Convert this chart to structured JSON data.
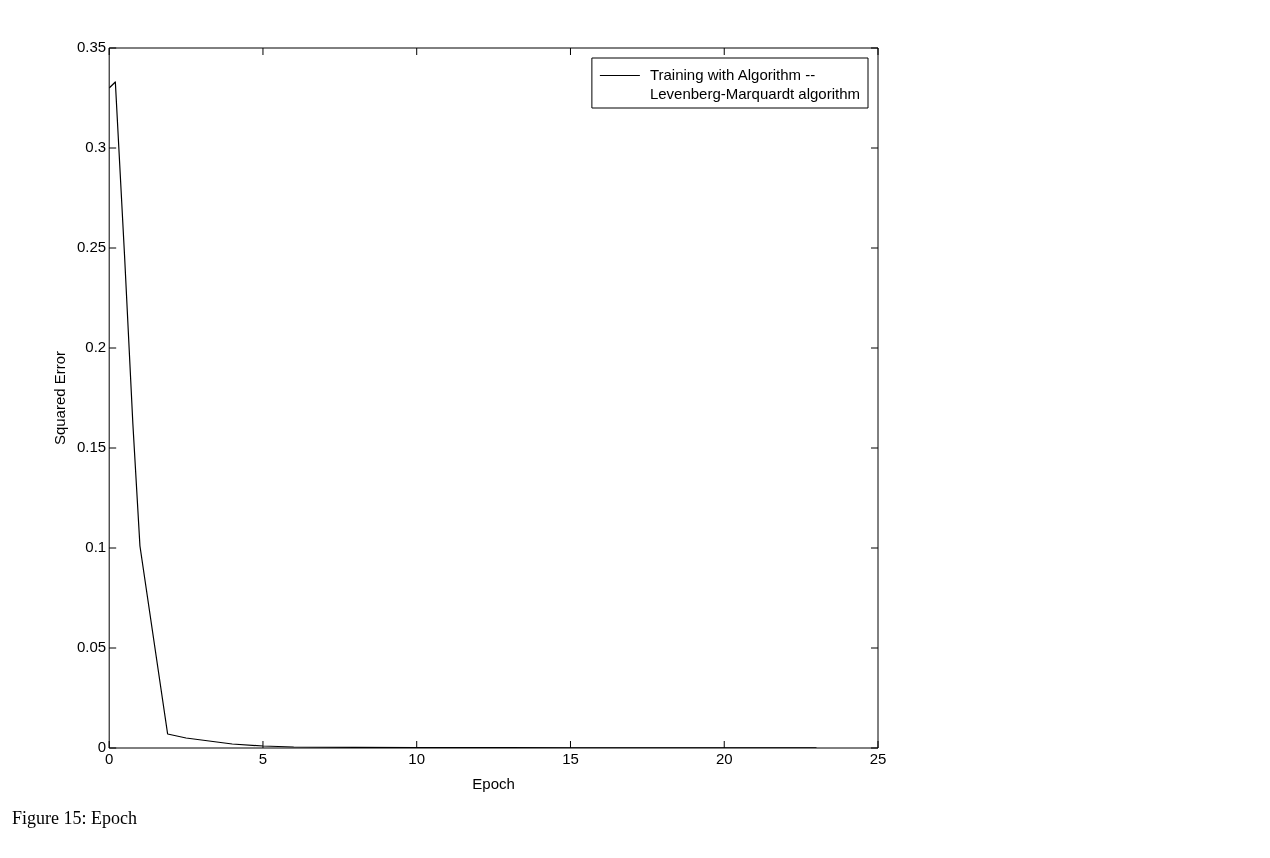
{
  "chart_data": {
    "type": "line",
    "xlabel": "Epoch",
    "ylabel": "Squared Error",
    "x": [
      0,
      0.2,
      0.5,
      0.77,
      1,
      1.9,
      2.5,
      3.5,
      4,
      5,
      6,
      8,
      10,
      15,
      20,
      23
    ],
    "series": [
      {
        "name": "Training with Algorithm -- Levenberg-Marquardt algorithm",
        "color": "#000000",
        "values": [
          0.33,
          0.333,
          0.246,
          0.162,
          0.101,
          0.007,
          0.005,
          0.003,
          0.002,
          0.001,
          0.0005,
          0.0003,
          0.0002,
          0.0001,
          0.0001,
          0.0001
        ]
      }
    ],
    "xlim": [
      0,
      25
    ],
    "xticks": [
      0,
      5,
      10,
      15,
      20,
      25
    ],
    "ylim": [
      0,
      0.35
    ],
    "yticks": [
      0,
      0.05,
      0.1,
      0.15,
      0.2,
      0.25,
      0.3,
      0.35
    ],
    "legend": "top right",
    "marker": "none",
    "line_style": "solid",
    "annotations": [
      "Figure 15: Epoch"
    ]
  }
}
